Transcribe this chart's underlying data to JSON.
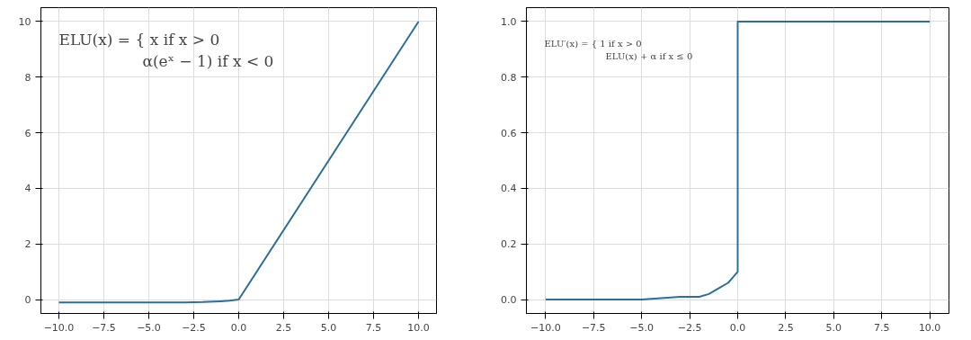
{
  "chart_data": [
    {
      "type": "line",
      "x": [
        -10,
        -5,
        -3,
        -2,
        -1,
        -0.5,
        0,
        10
      ],
      "series": [
        {
          "color": "#2c6e9c",
          "values": [
            -0.1,
            -0.1,
            -0.1,
            -0.09,
            -0.06,
            -0.04,
            0,
            10
          ]
        }
      ],
      "xlim": [
        -11,
        11
      ],
      "ylim": [
        -0.5,
        10.5
      ],
      "xticks": [
        {
          "value": -10,
          "label": "−10.0"
        },
        {
          "value": -7.5,
          "label": "−7.5"
        },
        {
          "value": -5,
          "label": "−5.0"
        },
        {
          "value": -2.5,
          "label": "−2.5"
        },
        {
          "value": 0,
          "label": "0.0"
        },
        {
          "value": 2.5,
          "label": "2.5"
        },
        {
          "value": 5,
          "label": "5.0"
        },
        {
          "value": 7.5,
          "label": "7.5"
        },
        {
          "value": 10,
          "label": "10.0"
        }
      ],
      "yticks": [
        0,
        2,
        4,
        6,
        8,
        10
      ],
      "grid": true,
      "annotations": [
        "ELU(x) = { x           if x > 0",
        "α(eˣ − 1)    if x < 0"
      ]
    },
    {
      "type": "line",
      "x": [
        -10,
        -5,
        -3,
        -2,
        -1.5,
        -1,
        -0.5,
        -0.25,
        0,
        0,
        10
      ],
      "series": [
        {
          "color": "#2c6e9c",
          "values": [
            0,
            0,
            0.01,
            0.01,
            0.02,
            0.04,
            0.06,
            0.08,
            0.1,
            1,
            1
          ]
        }
      ],
      "xlim": [
        -11,
        11
      ],
      "ylim": [
        -0.05,
        1.05
      ],
      "xticks": [
        {
          "value": -10,
          "label": "−10.0"
        },
        {
          "value": -7.5,
          "label": "−7.5"
        },
        {
          "value": -5,
          "label": "−5.0"
        },
        {
          "value": -2.5,
          "label": "−2.5"
        },
        {
          "value": 0,
          "label": "0.0"
        },
        {
          "value": 2.5,
          "label": "2.5"
        },
        {
          "value": 5,
          "label": "5.0"
        },
        {
          "value": 7.5,
          "label": "7.5"
        },
        {
          "value": 10,
          "label": "10.0"
        }
      ],
      "yticks": [
        {
          "value": 0,
          "label": "0.0"
        },
        {
          "value": 0.2,
          "label": "0.2"
        },
        {
          "value": 0.4,
          "label": "0.4"
        },
        {
          "value": 0.6,
          "label": "0.6"
        },
        {
          "value": 0.8,
          "label": "0.8"
        },
        {
          "value": 1,
          "label": "1.0"
        }
      ],
      "grid": true,
      "annotations": [
        "ELU′(x) = { 1                    if x > 0",
        "ELU(x) + α     if x ≤ 0"
      ]
    }
  ]
}
